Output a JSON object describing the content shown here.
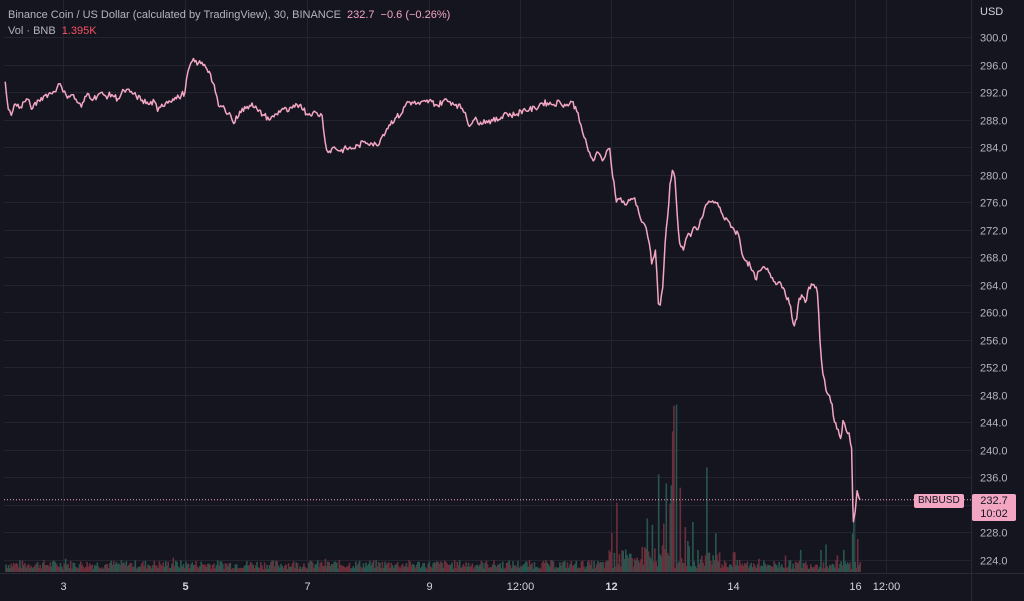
{
  "legend": {
    "title": "Binance Coin / US Dollar (calculated by TradingView), 30, BINANCE",
    "last": "232.7",
    "change": "−0.6 (−0.26%)",
    "vol_label": "Vol · BNB",
    "vol_value": "1.395K"
  },
  "currency": "USD",
  "price_tag": {
    "symbol": "BNBUSD",
    "price": "232.7",
    "countdown": "10:02"
  },
  "colors": {
    "background": "#151520",
    "line": "#f3a6c2",
    "grid": "#24242f",
    "vol_up": "#28564f",
    "vol_down": "#6b2e3a"
  },
  "chart_data": {
    "type": "line",
    "title": "Binance Coin / US Dollar (calculated by TradingView), 30, BINANCE",
    "xlabel": "",
    "ylabel": "USD",
    "ylim": [
      222,
      302
    ],
    "y_ticks": [
      "300.0",
      "296.0",
      "292.0",
      "288.0",
      "284.0",
      "280.0",
      "276.0",
      "272.0",
      "268.0",
      "264.0",
      "260.0",
      "256.0",
      "252.0",
      "248.0",
      "244.0",
      "240.0",
      "236.0",
      "232.0",
      "228.0",
      "224.0"
    ],
    "x_ticks": [
      {
        "label": "3",
        "t": 3.0,
        "bold": false
      },
      {
        "label": "5",
        "t": 5.0,
        "bold": true
      },
      {
        "label": "7",
        "t": 7.0,
        "bold": false
      },
      {
        "label": "9",
        "t": 9.0,
        "bold": false
      },
      {
        "label": "12:00",
        "t": 10.5,
        "bold": false
      },
      {
        "label": "12",
        "t": 12.0,
        "bold": true
      },
      {
        "label": "14",
        "t": 14.0,
        "bold": false
      },
      {
        "label": "16",
        "t": 16.0,
        "bold": false
      },
      {
        "label": "12:00",
        "t": 16.5,
        "bold": false
      }
    ],
    "xlim": [
      2.03,
      17.9
    ],
    "grid": true,
    "last_price": 232.7,
    "series": [
      {
        "values_t_price": [
          [
            2.05,
            293.5
          ],
          [
            2.1,
            289.5
          ],
          [
            2.15,
            288.6
          ],
          [
            2.2,
            290.2
          ],
          [
            2.3,
            289.8
          ],
          [
            2.4,
            291.0
          ],
          [
            2.5,
            289.6
          ],
          [
            2.6,
            290.8
          ],
          [
            2.7,
            291.5
          ],
          [
            2.8,
            291.8
          ],
          [
            2.9,
            292.6
          ],
          [
            2.95,
            293.2
          ],
          [
            3.0,
            292.0
          ],
          [
            3.05,
            291.5
          ],
          [
            3.15,
            291.6
          ],
          [
            3.25,
            290.4
          ],
          [
            3.3,
            289.8
          ],
          [
            3.4,
            291.8
          ],
          [
            3.5,
            291.0
          ],
          [
            3.6,
            291.8
          ],
          [
            3.7,
            291.4
          ],
          [
            3.8,
            291.6
          ],
          [
            3.9,
            291.0
          ],
          [
            4.0,
            292.2
          ],
          [
            4.1,
            292.0
          ],
          [
            4.2,
            291.4
          ],
          [
            4.3,
            290.8
          ],
          [
            4.4,
            290.2
          ],
          [
            4.5,
            290.6
          ],
          [
            4.55,
            289.2
          ],
          [
            4.6,
            289.8
          ],
          [
            4.7,
            290.6
          ],
          [
            4.8,
            291.0
          ],
          [
            4.9,
            291.2
          ],
          [
            5.0,
            292.0
          ],
          [
            5.05,
            295.0
          ],
          [
            5.12,
            296.5
          ],
          [
            5.22,
            296.2
          ],
          [
            5.32,
            296.0
          ],
          [
            5.4,
            295.0
          ],
          [
            5.5,
            292.0
          ],
          [
            5.55,
            290.0
          ],
          [
            5.65,
            289.6
          ],
          [
            5.75,
            288.6
          ],
          [
            5.8,
            287.4
          ],
          [
            5.9,
            289.2
          ],
          [
            6.0,
            289.6
          ],
          [
            6.1,
            290.4
          ],
          [
            6.2,
            289.2
          ],
          [
            6.3,
            288.6
          ],
          [
            6.4,
            288.0
          ],
          [
            6.5,
            288.8
          ],
          [
            6.6,
            289.6
          ],
          [
            6.7,
            289.2
          ],
          [
            6.8,
            289.8
          ],
          [
            6.9,
            290.2
          ],
          [
            7.0,
            288.8
          ],
          [
            7.1,
            289.0
          ],
          [
            7.25,
            288.6
          ],
          [
            7.3,
            284.8
          ],
          [
            7.35,
            283.2
          ],
          [
            7.45,
            284.0
          ],
          [
            7.55,
            283.4
          ],
          [
            7.65,
            283.8
          ],
          [
            7.75,
            283.8
          ],
          [
            7.85,
            284.2
          ],
          [
            7.95,
            284.8
          ],
          [
            8.05,
            284.6
          ],
          [
            8.15,
            284.2
          ],
          [
            8.25,
            285.8
          ],
          [
            8.35,
            287.2
          ],
          [
            8.45,
            288.2
          ],
          [
            8.55,
            288.8
          ],
          [
            8.65,
            290.6
          ],
          [
            8.75,
            290.4
          ],
          [
            8.85,
            290.2
          ],
          [
            8.95,
            290.6
          ],
          [
            9.05,
            290.6
          ],
          [
            9.15,
            290.0
          ],
          [
            9.25,
            290.8
          ],
          [
            9.35,
            290.6
          ],
          [
            9.45,
            290.2
          ],
          [
            9.55,
            289.6
          ],
          [
            9.6,
            289.0
          ],
          [
            9.65,
            287.2
          ],
          [
            9.75,
            288.0
          ],
          [
            9.85,
            287.6
          ],
          [
            9.95,
            287.8
          ],
          [
            10.05,
            287.8
          ],
          [
            10.15,
            288.0
          ],
          [
            10.25,
            289.0
          ],
          [
            10.35,
            288.6
          ],
          [
            10.45,
            288.8
          ],
          [
            10.55,
            289.4
          ],
          [
            10.65,
            289.4
          ],
          [
            10.75,
            289.6
          ],
          [
            10.85,
            290.4
          ],
          [
            10.95,
            290.4
          ],
          [
            11.05,
            290.2
          ],
          [
            11.15,
            290.6
          ],
          [
            11.25,
            290.0
          ],
          [
            11.35,
            290.6
          ],
          [
            11.45,
            289.0
          ],
          [
            11.5,
            287.2
          ],
          [
            11.55,
            285.4
          ],
          [
            11.62,
            283.4
          ],
          [
            11.7,
            282.0
          ],
          [
            11.78,
            283.2
          ],
          [
            11.85,
            282.0
          ],
          [
            11.92,
            283.4
          ],
          [
            11.97,
            283.8
          ],
          [
            12.0,
            281.2
          ],
          [
            12.04,
            279.0
          ],
          [
            12.08,
            276.0
          ],
          [
            12.15,
            276.6
          ],
          [
            12.22,
            275.6
          ],
          [
            12.3,
            276.2
          ],
          [
            12.38,
            276.6
          ],
          [
            12.45,
            274.4
          ],
          [
            12.52,
            273.0
          ],
          [
            12.57,
            272.2
          ],
          [
            12.62,
            270.0
          ],
          [
            12.66,
            267.0
          ],
          [
            12.72,
            269.0
          ],
          [
            12.77,
            261.2
          ],
          [
            12.8,
            261.0
          ],
          [
            12.84,
            263.5
          ],
          [
            12.88,
            270.0
          ],
          [
            12.92,
            273.8
          ],
          [
            12.96,
            278.6
          ],
          [
            13.0,
            280.6
          ],
          [
            13.04,
            279.5
          ],
          [
            13.08,
            274.0
          ],
          [
            13.12,
            270.0
          ],
          [
            13.18,
            269.0
          ],
          [
            13.24,
            271.0
          ],
          [
            13.3,
            271.0
          ],
          [
            13.36,
            272.4
          ],
          [
            13.42,
            272.0
          ],
          [
            13.48,
            273.6
          ],
          [
            13.55,
            275.6
          ],
          [
            13.62,
            276.0
          ],
          [
            13.7,
            276.0
          ],
          [
            13.78,
            275.2
          ],
          [
            13.86,
            273.4
          ],
          [
            13.94,
            273.0
          ],
          [
            14.02,
            271.8
          ],
          [
            14.08,
            271.4
          ],
          [
            14.16,
            268.0
          ],
          [
            14.22,
            267.4
          ],
          [
            14.28,
            266.6
          ],
          [
            14.36,
            264.8
          ],
          [
            14.44,
            266.0
          ],
          [
            14.52,
            266.4
          ],
          [
            14.6,
            265.6
          ],
          [
            14.68,
            264.4
          ],
          [
            14.76,
            264.4
          ],
          [
            14.84,
            263.2
          ],
          [
            14.92,
            261.2
          ],
          [
            15.0,
            258.0
          ],
          [
            15.04,
            259.0
          ],
          [
            15.08,
            262.0
          ],
          [
            15.14,
            262.2
          ],
          [
            15.18,
            261.4
          ],
          [
            15.24,
            263.6
          ],
          [
            15.32,
            264.0
          ],
          [
            15.38,
            262.8
          ],
          [
            15.42,
            256.0
          ],
          [
            15.47,
            251.0
          ],
          [
            15.52,
            248.6
          ],
          [
            15.58,
            247.8
          ],
          [
            15.62,
            246.6
          ],
          [
            15.66,
            244.0
          ],
          [
            15.7,
            243.0
          ],
          [
            15.76,
            241.6
          ],
          [
            15.8,
            244.2
          ],
          [
            15.85,
            242.8
          ],
          [
            15.9,
            242.4
          ],
          [
            15.94,
            240.2
          ],
          [
            15.96,
            232.0
          ],
          [
            15.97,
            229.5
          ],
          [
            16.0,
            231.0
          ],
          [
            16.03,
            234.0
          ],
          [
            16.06,
            233.0
          ],
          [
            16.08,
            232.7
          ]
        ]
      }
    ],
    "volume": {
      "label": "Vol · BNB",
      "last": "1.395K",
      "spikes_t_relative": [
        [
          2.55,
          0.04
        ],
        [
          3.02,
          0.12
        ],
        [
          3.4,
          0.05
        ],
        [
          4.05,
          0.05
        ],
        [
          4.8,
          0.13
        ],
        [
          5.08,
          0.07
        ],
        [
          5.55,
          0.06
        ],
        [
          6.0,
          0.06
        ],
        [
          7.3,
          0.12
        ],
        [
          8.4,
          0.06
        ],
        [
          9.6,
          0.07
        ],
        [
          11.5,
          0.06
        ],
        [
          11.95,
          0.1
        ],
        [
          12.0,
          0.25
        ],
        [
          12.07,
          0.42
        ],
        [
          12.15,
          0.18
        ],
        [
          12.58,
          0.28
        ],
        [
          12.65,
          0.2
        ],
        [
          12.77,
          0.42
        ],
        [
          12.84,
          0.3
        ],
        [
          12.88,
          0.72
        ],
        [
          12.96,
          0.5
        ],
        [
          13.0,
          0.85
        ],
        [
          13.06,
          0.55
        ],
        [
          13.12,
          0.35
        ],
        [
          13.2,
          0.3
        ],
        [
          13.32,
          0.38
        ],
        [
          13.4,
          0.2
        ],
        [
          13.55,
          0.38
        ],
        [
          13.7,
          0.22
        ],
        [
          14.0,
          0.18
        ],
        [
          14.4,
          0.12
        ],
        [
          14.85,
          0.15
        ],
        [
          15.1,
          0.2
        ],
        [
          15.42,
          0.2
        ],
        [
          15.5,
          0.25
        ],
        [
          15.7,
          0.15
        ],
        [
          15.8,
          0.2
        ],
        [
          15.95,
          0.35
        ],
        [
          15.97,
          0.5
        ],
        [
          16.02,
          0.3
        ]
      ]
    }
  }
}
